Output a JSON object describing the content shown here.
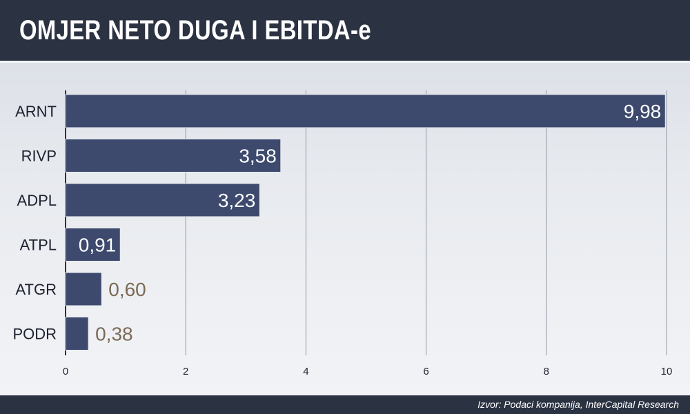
{
  "header": {
    "title": "OMJER NETO DUGA I EBITDA-e"
  },
  "footer": {
    "source": "Izvor: Podaci kompanija, InterCapital Research"
  },
  "colors": {
    "bar": "#3d4a6e",
    "header_bg": "#2b3242",
    "value_inside": "#ffffff",
    "value_outside": "#7a6a55"
  },
  "chart_data": {
    "type": "bar",
    "orientation": "horizontal",
    "categories": [
      "ARNT",
      "RIVP",
      "ADPL",
      "ATPL",
      "ATGR",
      "PODR"
    ],
    "values": [
      9.98,
      3.58,
      3.23,
      0.91,
      0.6,
      0.38
    ],
    "value_labels": [
      "9,98",
      "3,58",
      "3,23",
      "0,91",
      "0,60",
      "0,38"
    ],
    "xlim": [
      0,
      10
    ],
    "xticks": [
      0,
      2,
      4,
      6,
      8,
      10
    ],
    "grid": true,
    "title": "OMJER NETO DUGA I EBITDA-e"
  }
}
